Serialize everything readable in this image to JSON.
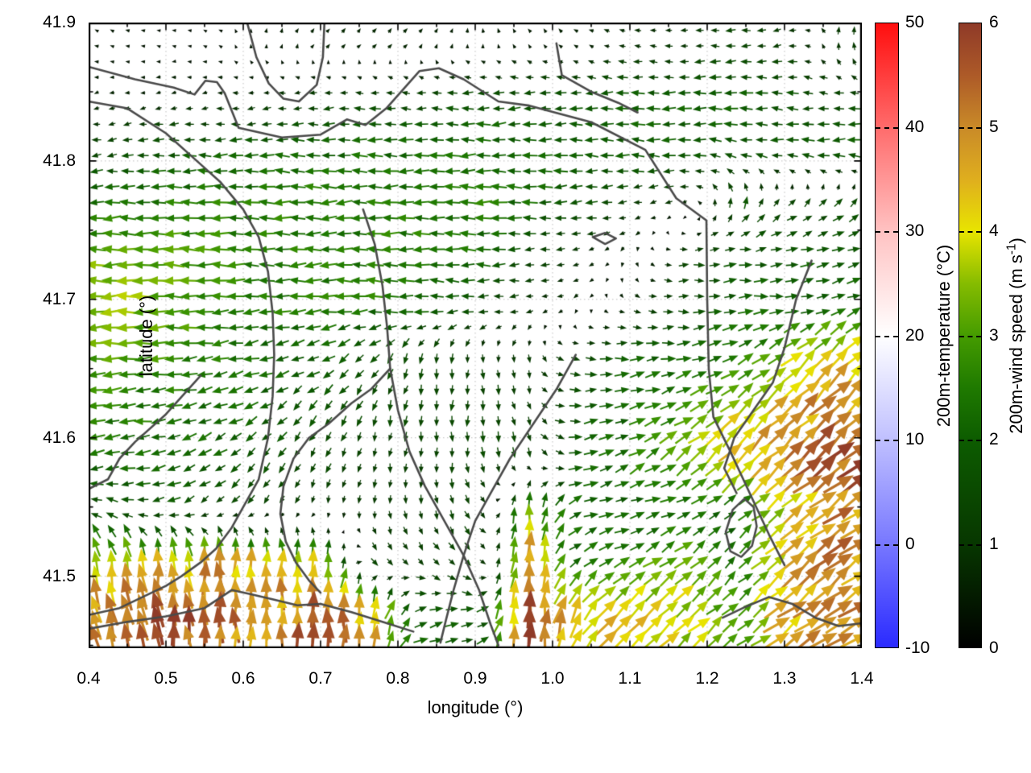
{
  "figure": {
    "xlabel": "longitude (°)",
    "ylabel": "latitude (°)",
    "x_ticks": [
      "0.4",
      "0.5",
      "0.6",
      "0.7",
      "0.8",
      "0.9",
      "1.0",
      "1.1",
      "1.2",
      "1.3",
      "1.4"
    ],
    "y_ticks": [
      "41.5",
      "41.6",
      "41.7",
      "41.8",
      "41.9"
    ]
  },
  "colorbar_temperature": {
    "label": "200m-temperature (°C)",
    "ticks": [
      "50",
      "40",
      "30",
      "20",
      "10",
      "0",
      "-10"
    ],
    "tick_values": [
      50,
      40,
      30,
      20,
      10,
      0,
      -10
    ],
    "range": [
      -10,
      50
    ],
    "stops": [
      [
        -10,
        "#2a2aff"
      ],
      [
        0,
        "#7878ff"
      ],
      [
        10,
        "#c0c0ff"
      ],
      [
        20,
        "#ffffff"
      ],
      [
        30,
        "#ffc2c2"
      ],
      [
        40,
        "#ff6b6b"
      ],
      [
        50,
        "#ff0e0e"
      ]
    ]
  },
  "colorbar_wind": {
    "label_pre": "200m-wind speed (m s",
    "label_sup": "-1",
    "label_post": ")",
    "ticks": [
      "6",
      "5",
      "4",
      "3",
      "2",
      "1",
      "0"
    ],
    "tick_values": [
      6,
      5,
      4,
      3,
      2,
      1,
      0
    ],
    "range": [
      0,
      6
    ],
    "stops": [
      [
        0,
        "#000000"
      ],
      [
        1,
        "#073700"
      ],
      [
        2,
        "#0d5c00"
      ],
      [
        2.5,
        "#1f7a00"
      ],
      [
        3,
        "#459c00"
      ],
      [
        3.5,
        "#86bc00"
      ],
      [
        4,
        "#e8e400"
      ],
      [
        4.5,
        "#dfae1e"
      ],
      [
        5,
        "#c98a28"
      ],
      [
        5.5,
        "#ad5a28"
      ],
      [
        6,
        "#8f3a28"
      ]
    ]
  },
  "chart_data": {
    "type": "quiver",
    "title": "",
    "xlabel": "longitude (°)",
    "ylabel": "latitude (°)",
    "xlim": [
      0.4,
      1.4
    ],
    "ylim": [
      41.448,
      41.9
    ],
    "x_tick_values": [
      0.4,
      0.5,
      0.6,
      0.7,
      0.8,
      0.9,
      1.0,
      1.1,
      1.2,
      1.3,
      1.4
    ],
    "y_tick_values": [
      41.5,
      41.6,
      41.7,
      41.8,
      41.9
    ],
    "grid": "dotted-major",
    "arrow_color_encoding": "200m wind speed (m/s) on the 0-6 colorbar scale",
    "wind_field": {
      "lon": [
        0.433,
        0.5,
        0.567,
        0.633,
        0.7,
        0.767,
        0.833,
        0.9,
        0.967,
        1.033,
        1.1,
        1.167,
        1.233,
        1.3,
        1.367
      ],
      "lat": [
        41.881,
        41.844,
        41.806,
        41.769,
        41.731,
        41.694,
        41.656,
        41.619,
        41.581,
        41.544,
        41.506,
        41.469
      ],
      "speed_ms": [
        [
          0.4,
          0.3,
          0.3,
          0.5,
          0.6,
          0.7,
          0.6,
          0.5,
          0.5,
          0.6,
          0.8,
          1.0,
          1.4,
          1.2,
          1.0
        ],
        [
          0.6,
          0.7,
          0.8,
          1.0,
          1.2,
          1.5,
          1.5,
          1.8,
          1.8,
          1.8,
          2.0,
          2.0,
          2.0,
          1.8,
          1.5
        ],
        [
          1.5,
          1.8,
          2.0,
          2.0,
          2.2,
          2.2,
          2.2,
          2.2,
          2.2,
          2.0,
          2.0,
          2.0,
          1.8,
          1.8,
          2.0
        ],
        [
          2.2,
          2.5,
          2.5,
          2.5,
          2.5,
          2.5,
          2.5,
          2.5,
          2.2,
          1.8,
          1.2,
          0.8,
          1.8,
          1.2,
          1.5
        ],
        [
          3.2,
          3.0,
          2.8,
          2.5,
          2.5,
          2.5,
          2.5,
          2.2,
          1.5,
          0.8,
          0.6,
          1.2,
          1.8,
          2.0,
          2.0
        ],
        [
          3.5,
          3.2,
          2.8,
          2.5,
          2.5,
          2.5,
          2.2,
          1.8,
          1.0,
          0.6,
          0.8,
          1.5,
          2.0,
          2.0,
          2.2
        ],
        [
          3.0,
          2.8,
          2.5,
          2.2,
          2.0,
          1.8,
          1.5,
          1.2,
          1.0,
          1.5,
          2.0,
          2.2,
          2.5,
          3.5,
          4.2
        ],
        [
          2.5,
          2.5,
          2.2,
          2.0,
          1.8,
          1.5,
          1.5,
          1.5,
          1.2,
          1.8,
          2.2,
          2.8,
          3.8,
          4.5,
          5.0
        ],
        [
          2.2,
          2.2,
          2.0,
          1.8,
          1.5,
          1.2,
          1.2,
          1.5,
          1.5,
          2.0,
          2.5,
          3.5,
          4.5,
          5.2,
          5.8
        ],
        [
          1.8,
          1.8,
          1.5,
          1.2,
          1.0,
          1.0,
          1.2,
          1.5,
          3.5,
          2.2,
          2.0,
          2.2,
          2.0,
          4.0,
          5.0
        ],
        [
          3.8,
          4.2,
          4.5,
          4.2,
          3.8,
          1.5,
          1.2,
          1.5,
          5.0,
          2.2,
          2.5,
          3.5,
          2.0,
          4.5,
          5.0
        ],
        [
          5.0,
          5.8,
          5.2,
          4.8,
          5.5,
          4.5,
          2.0,
          1.8,
          5.8,
          4.0,
          4.5,
          3.8,
          3.0,
          4.5,
          5.0
        ]
      ],
      "dir_deg_ccw_from_east": [
        [
          160,
          170,
          150,
          80,
          55,
          45,
          60,
          90,
          120,
          150,
          170,
          175,
          185,
          190,
          90
        ],
        [
          200,
          195,
          190,
          185,
          185,
          180,
          180,
          182,
          185,
          183,
          180,
          180,
          178,
          175,
          180
        ],
        [
          185,
          182,
          180,
          180,
          180,
          178,
          180,
          182,
          180,
          180,
          178,
          175,
          172,
          175,
          180
        ],
        [
          182,
          180,
          180,
          178,
          180,
          182,
          180,
          178,
          180,
          185,
          190,
          200,
          80,
          50,
          45
        ],
        [
          180,
          180,
          178,
          180,
          182,
          180,
          178,
          180,
          185,
          200,
          250,
          5,
          5,
          10,
          15
        ],
        [
          180,
          182,
          185,
          185,
          182,
          180,
          178,
          180,
          190,
          220,
          340,
          0,
          5,
          10,
          20
        ],
        [
          182,
          185,
          190,
          195,
          205,
          230,
          255,
          270,
          280,
          355,
          5,
          10,
          25,
          40,
          45
        ],
        [
          185,
          192,
          200,
          212,
          230,
          250,
          265,
          272,
          285,
          5,
          15,
          30,
          42,
          45,
          45
        ],
        [
          188,
          198,
          212,
          228,
          246,
          258,
          268,
          274,
          288,
          12,
          28,
          40,
          45,
          42,
          38
        ],
        [
          160,
          205,
          220,
          240,
          255,
          265,
          272,
          300,
          85,
          20,
          10,
          20,
          35,
          40,
          38
        ],
        [
          100,
          95,
          92,
          90,
          92,
          310,
          315,
          300,
          88,
          30,
          30,
          40,
          45,
          42,
          40
        ],
        [
          105,
          97,
          92,
          90,
          90,
          85,
          15,
          10,
          88,
          60,
          45,
          42,
          40,
          38,
          36
        ]
      ]
    },
    "boundary_contours_lonlat": [
      [
        [
          0.4,
          41.868
        ],
        [
          0.46,
          41.859
        ],
        [
          0.51,
          41.853
        ],
        [
          0.537,
          41.848
        ],
        [
          0.551,
          41.858
        ],
        [
          0.566,
          41.857
        ],
        [
          0.576,
          41.849
        ],
        [
          0.594,
          41.824
        ],
        [
          0.65,
          41.817
        ],
        [
          0.7,
          41.819
        ],
        [
          0.734,
          41.83
        ],
        [
          0.758,
          41.826
        ],
        [
          0.785,
          41.838
        ],
        [
          0.828,
          41.865
        ],
        [
          0.853,
          41.867
        ],
        [
          0.885,
          41.859
        ],
        [
          0.93,
          41.843
        ],
        [
          0.97,
          41.84
        ],
        [
          1.05,
          41.828
        ],
        [
          1.12,
          41.808
        ],
        [
          1.16,
          41.773
        ],
        [
          1.199,
          41.757
        ],
        [
          1.2,
          41.7
        ],
        [
          1.202,
          41.65
        ],
        [
          1.208,
          41.615
        ],
        [
          1.23,
          41.59
        ],
        [
          1.255,
          41.56
        ],
        [
          1.28,
          41.53
        ],
        [
          1.3,
          41.508
        ]
      ],
      [
        [
          0.4,
          41.843
        ],
        [
          0.45,
          41.838
        ],
        [
          0.5,
          41.82
        ],
        [
          0.54,
          41.8
        ],
        [
          0.57,
          41.785
        ],
        [
          0.6,
          41.765
        ],
        [
          0.62,
          41.745
        ],
        [
          0.632,
          41.72
        ],
        [
          0.638,
          41.69
        ],
        [
          0.64,
          41.66
        ],
        [
          0.638,
          41.63
        ],
        [
          0.632,
          41.6
        ],
        [
          0.62,
          41.57
        ],
        [
          0.6,
          41.55
        ],
        [
          0.585,
          41.535
        ],
        [
          0.565,
          41.52
        ],
        [
          0.545,
          41.51
        ],
        [
          0.52,
          41.5
        ],
        [
          0.5,
          41.493
        ],
        [
          0.47,
          41.485
        ],
        [
          0.44,
          41.477
        ],
        [
          0.4,
          41.472
        ]
      ],
      [
        [
          0.755,
          41.765
        ],
        [
          0.77,
          41.74
        ],
        [
          0.78,
          41.71
        ],
        [
          0.786,
          41.68
        ],
        [
          0.79,
          41.65
        ],
        [
          0.8,
          41.62
        ],
        [
          0.815,
          41.59
        ],
        [
          0.835,
          41.565
        ],
        [
          0.86,
          41.54
        ],
        [
          0.885,
          41.515
        ],
        [
          0.905,
          41.49
        ],
        [
          0.92,
          41.465
        ],
        [
          0.93,
          41.45
        ]
      ],
      [
        [
          0.79,
          41.65
        ],
        [
          0.765,
          41.635
        ],
        [
          0.74,
          41.625
        ],
        [
          0.71,
          41.61
        ],
        [
          0.685,
          41.6
        ],
        [
          0.665,
          41.585
        ],
        [
          0.652,
          41.565
        ],
        [
          0.648,
          41.545
        ],
        [
          0.655,
          41.525
        ],
        [
          0.668,
          41.51
        ],
        [
          0.685,
          41.497
        ],
        [
          0.7,
          41.488
        ]
      ],
      [
        [
          1.005,
          41.885
        ],
        [
          1.012,
          41.862
        ],
        [
          1.05,
          41.85
        ],
        [
          1.085,
          41.842
        ],
        [
          1.11,
          41.835
        ]
      ],
      [
        [
          1.03,
          41.66
        ],
        [
          1.005,
          41.635
        ],
        [
          0.975,
          41.61
        ],
        [
          0.945,
          41.585
        ],
        [
          0.92,
          41.56
        ],
        [
          0.9,
          41.54
        ],
        [
          0.885,
          41.515
        ],
        [
          0.872,
          41.49
        ],
        [
          0.862,
          41.468
        ],
        [
          0.855,
          41.452
        ]
      ],
      [
        [
          0.4,
          41.462
        ],
        [
          0.45,
          41.467
        ],
        [
          0.5,
          41.471
        ],
        [
          0.55,
          41.477
        ],
        [
          0.585,
          41.49
        ],
        [
          0.61,
          41.487
        ],
        [
          0.64,
          41.483
        ],
        [
          0.67,
          41.479
        ],
        [
          0.7,
          41.48
        ],
        [
          0.74,
          41.474
        ],
        [
          0.78,
          41.467
        ],
        [
          0.82,
          41.46
        ]
      ],
      [
        [
          1.233,
          41.548
        ],
        [
          1.248,
          41.556
        ],
        [
          1.26,
          41.55
        ],
        [
          1.264,
          41.536
        ],
        [
          1.258,
          41.522
        ],
        [
          1.244,
          41.514
        ],
        [
          1.23,
          41.518
        ],
        [
          1.224,
          41.532
        ],
        [
          1.233,
          41.548
        ]
      ],
      [
        [
          1.22,
          41.47
        ],
        [
          1.25,
          41.478
        ],
        [
          1.28,
          41.485
        ],
        [
          1.31,
          41.48
        ],
        [
          1.34,
          41.47
        ],
        [
          1.37,
          41.464
        ],
        [
          1.4,
          41.466
        ]
      ],
      [
        [
          0.605,
          41.9
        ],
        [
          0.617,
          41.875
        ],
        [
          0.633,
          41.856
        ],
        [
          0.652,
          41.845
        ],
        [
          0.672,
          41.843
        ],
        [
          0.695,
          41.855
        ],
        [
          0.703,
          41.875
        ],
        [
          0.705,
          41.9
        ]
      ],
      [
        [
          1.335,
          41.728
        ],
        [
          1.315,
          41.7
        ],
        [
          1.3,
          41.665
        ],
        [
          1.285,
          41.64
        ],
        [
          1.26,
          41.62
        ],
        [
          1.235,
          41.6
        ],
        [
          1.222,
          41.578
        ],
        [
          1.238,
          41.56
        ]
      ],
      [
        [
          1.052,
          41.745
        ],
        [
          1.068,
          41.748
        ],
        [
          1.082,
          41.744
        ],
        [
          1.068,
          41.74
        ],
        [
          1.052,
          41.745
        ]
      ],
      [
        [
          0.545,
          41.645
        ],
        [
          0.5,
          41.617
        ],
        [
          0.46,
          41.597
        ],
        [
          0.44,
          41.585
        ],
        [
          0.425,
          41.57
        ],
        [
          0.4,
          41.563
        ]
      ]
    ]
  }
}
